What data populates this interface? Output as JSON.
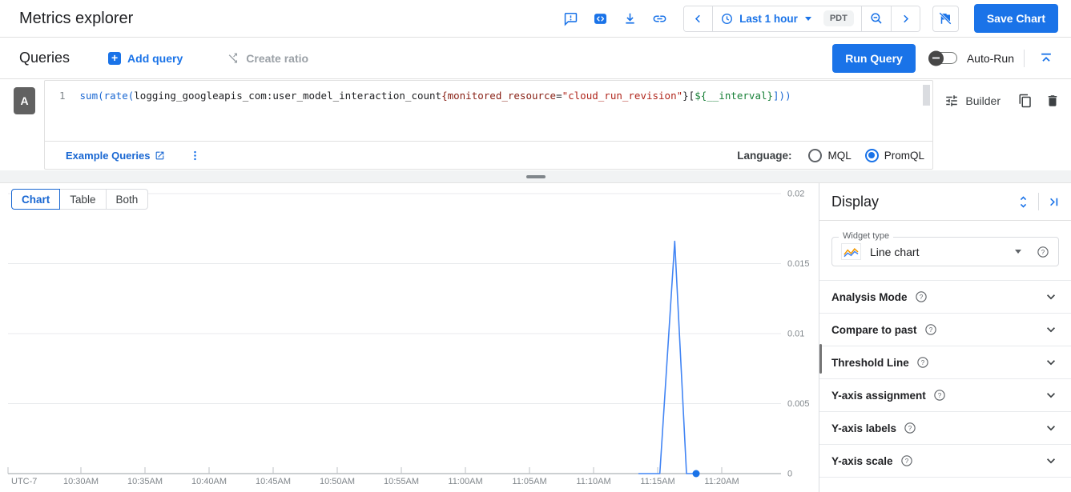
{
  "header": {
    "title": "Metrics explorer",
    "time_range": "Last 1 hour",
    "timezone": "PDT",
    "save_button": "Save Chart"
  },
  "queries": {
    "title": "Queries",
    "add_query_label": "Add query",
    "create_ratio_label": "Create ratio",
    "run_query_label": "Run Query",
    "auto_run_label": "Auto-Run",
    "auto_run_enabled": false,
    "badge": "A",
    "line_number": "1",
    "code_segments": [
      {
        "t": "sum(rate(",
        "c": "kw"
      },
      {
        "t": "logging_googleapis_com:user_model_interaction_count",
        "c": "plain"
      },
      {
        "t": "{",
        "c": "label"
      },
      {
        "t": "monitored_resource",
        "c": "label"
      },
      {
        "t": "=",
        "c": "plain"
      },
      {
        "t": "\"cloud_run_revision\"",
        "c": "str"
      },
      {
        "t": "}[",
        "c": "plain"
      },
      {
        "t": "${__interval}",
        "c": "var"
      },
      {
        "t": "]))",
        "c": "kw"
      }
    ],
    "example_queries_label": "Example Queries",
    "language_label": "Language:",
    "languages": [
      "MQL",
      "PromQL"
    ],
    "selected_language": "PromQL",
    "builder_label": "Builder"
  },
  "view_tabs": {
    "tabs": [
      "Chart",
      "Table",
      "Both"
    ],
    "active": "Chart"
  },
  "chart_data": {
    "type": "line",
    "title": "",
    "grid": true,
    "legend_position": "none",
    "x_axis": {
      "timezone_label": "UTC-7",
      "start_tick_time": "10:30",
      "tick_interval_minutes": 5,
      "tick_labels": [
        "10:30AM",
        "10:35AM",
        "10:40AM",
        "10:45AM",
        "10:50AM",
        "10:55AM",
        "11:00AM",
        "11:05AM",
        "11:10AM",
        "11:15AM",
        "11:20AM"
      ]
    },
    "y_axis": {
      "side": "right",
      "range": [
        0,
        0.02
      ],
      "ticks": [
        0,
        0.005,
        0.01,
        0.015,
        0.02
      ]
    },
    "series": [
      {
        "color": "#4285f4",
        "end_dot": true,
        "points": [
          [
            "11:13:30",
            0
          ],
          [
            "11:15:10",
            0
          ],
          [
            "11:16:20",
            0.0166
          ],
          [
            "11:17:15",
            0
          ],
          [
            "11:18:00",
            0
          ]
        ]
      }
    ]
  },
  "display": {
    "title": "Display",
    "widget_type_label": "Widget type",
    "widget_type_value": "Line chart",
    "sections": [
      "Analysis Mode",
      "Compare to past",
      "Threshold Line",
      "Y-axis assignment",
      "Y-axis labels",
      "Y-axis scale"
    ]
  }
}
